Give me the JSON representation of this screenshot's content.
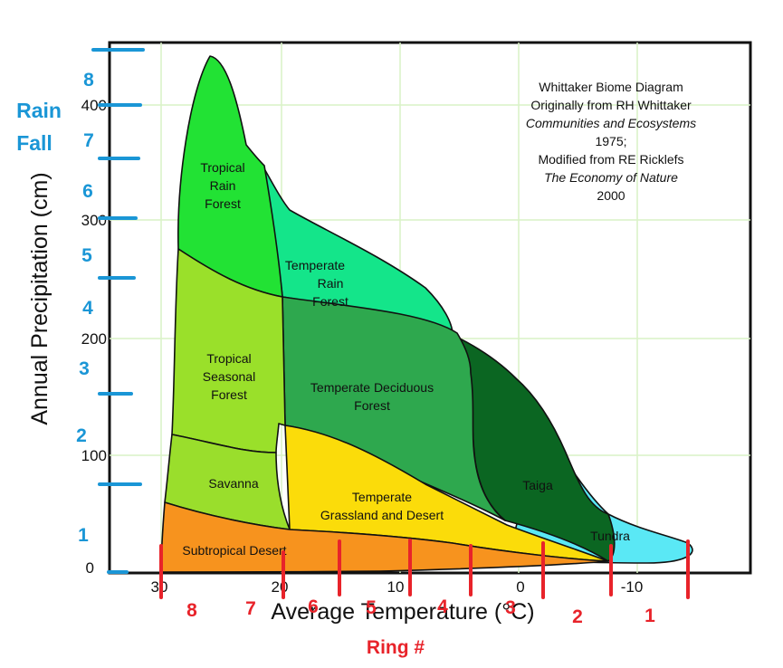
{
  "diagram": {
    "x_axis_title": "Average Temperature (°C)",
    "y_axis_title": "Annual Precipitation (cm)",
    "x_ticks": [
      "30",
      "20",
      "10",
      "0",
      "-10"
    ],
    "y_ticks": [
      "0",
      "100",
      "200",
      "300",
      "400"
    ],
    "x_tick_values": [
      30,
      20,
      10,
      0,
      -10
    ],
    "y_tick_values": [
      0,
      100,
      200,
      300,
      400
    ],
    "biomes": {
      "tropical_rain_forest": [
        "Tropical",
        "Rain",
        "Forest"
      ],
      "temperate_rain_forest": [
        "Temperate",
        "Rain",
        "Forest"
      ],
      "tropical_seasonal_forest": [
        "Tropical",
        "Seasonal",
        "Forest"
      ],
      "temperate_deciduous_forest": [
        "Temperate Deciduous",
        "Forest"
      ],
      "savanna": [
        "Savanna"
      ],
      "temperate_grassland": [
        "Temperate",
        "Grassland and Desert"
      ],
      "taiga": [
        "Taiga"
      ],
      "tundra": [
        "Tundra"
      ],
      "subtropical_desert": [
        "Subtropical Desert"
      ]
    },
    "colors": {
      "tropical_rain_forest": "#22e234",
      "temperate_rain_forest": "#14e58a",
      "tropical_seasonal_forest": "#9ae02a",
      "temperate_deciduous_forest": "#2ea84e",
      "savanna": "#9ade2c",
      "temperate_grassland": "#fbdc0a",
      "taiga": "#0b6622",
      "tundra": "#5ae8f5",
      "subtropical_desert": "#f7931e",
      "rainfall_marks": "#1a96d6",
      "ring_marks": "#e8232a"
    },
    "attribution": {
      "line1": "Whittaker Biome Diagram",
      "line2": "Originally from RH Whittaker",
      "line3": "Communities and Ecosystems",
      "line4": "1975;",
      "line5": "Modified from RE Ricklefs",
      "line6": "The Economy of Nature",
      "line7": "2000"
    }
  },
  "overlay": {
    "rain_fall_title": [
      "Rain",
      "Fall"
    ],
    "rain_fall_numbers": [
      "1",
      "2",
      "3",
      "4",
      "5",
      "6",
      "7",
      "8"
    ],
    "ring_title": "Ring #",
    "ring_numbers": [
      "8",
      "7",
      "6",
      "5",
      "4",
      "3",
      "2",
      "1"
    ]
  }
}
